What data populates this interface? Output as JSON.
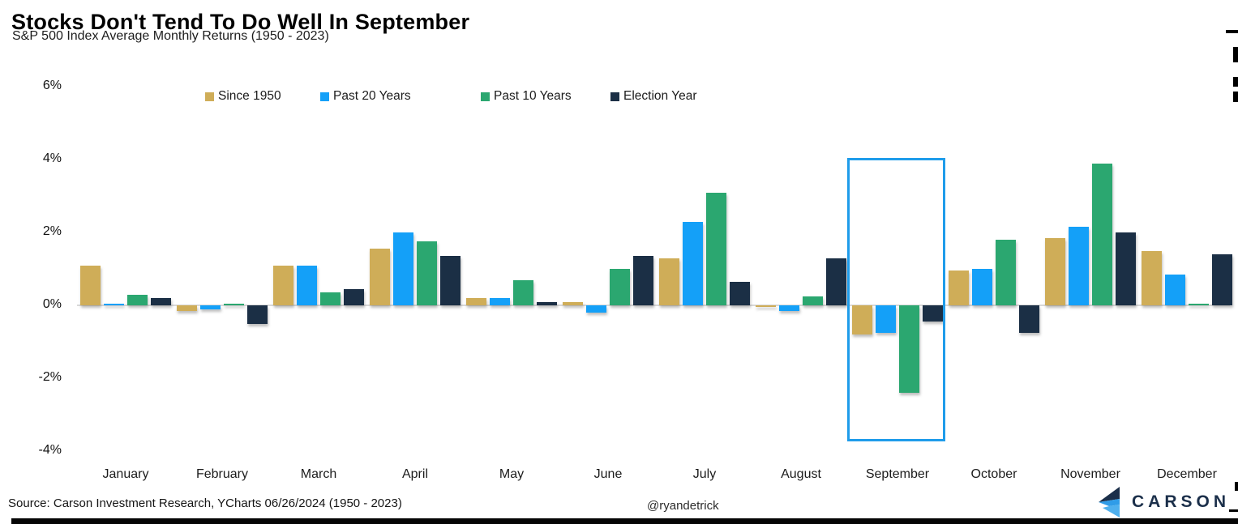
{
  "header": {
    "title": "Stocks Don't Tend To Do Well In September",
    "subtitle": "S&P 500 Index Average Monthly Returns (1950 - 2023)"
  },
  "footer": {
    "source": "Source: Carson Investment Research, YCharts 06/26/2024 (1950 - 2023)",
    "handle": "@ryandetrick",
    "brand": "CARSON"
  },
  "colors": {
    "since_1950": "#cfad58",
    "past_20_years": "#14a0f8",
    "past_10_years": "#2ba770",
    "election_year": "#1b2f45",
    "highlight_box": "#1f9cea",
    "axis_line": "#d9d9d9",
    "brand_navy": "#1b2f4a",
    "brand_blue": "#2f9ce8"
  },
  "chart_data": {
    "type": "bar",
    "title": "S&P 500 Index Average Monthly Returns (1950 - 2023)",
    "xlabel": "",
    "ylabel": "",
    "ylim": [
      -4,
      6
    ],
    "yticks": [
      6,
      4,
      2,
      0,
      -2,
      -4
    ],
    "ytick_labels": [
      "6%",
      "4%",
      "2%",
      "0%",
      "-2%",
      "-4%"
    ],
    "grid": false,
    "legend_position": "top",
    "categories": [
      "January",
      "February",
      "March",
      "April",
      "May",
      "June",
      "July",
      "August",
      "September",
      "October",
      "November",
      "December"
    ],
    "series": [
      {
        "name": "Since 1950",
        "color": "#cfad58",
        "values": [
          1.1,
          -0.15,
          1.1,
          1.55,
          0.2,
          0.1,
          1.3,
          -0.05,
          -0.8,
          0.95,
          1.85,
          1.5
        ]
      },
      {
        "name": "Past 20 Years",
        "color": "#14a0f8",
        "values": [
          0.0,
          -0.1,
          1.1,
          2.0,
          0.2,
          -0.2,
          2.3,
          -0.15,
          -0.75,
          1.0,
          2.15,
          0.85
        ]
      },
      {
        "name": "Past 10 Years",
        "color": "#2ba770",
        "values": [
          0.3,
          0.05,
          0.35,
          1.75,
          0.7,
          1.0,
          3.1,
          0.25,
          -2.4,
          1.8,
          3.9,
          0.05
        ]
      },
      {
        "name": "Election Year",
        "color": "#1b2f45",
        "values": [
          0.2,
          -0.5,
          0.45,
          1.35,
          0.1,
          1.35,
          0.65,
          1.3,
          -0.45,
          -0.75,
          2.0,
          1.4
        ]
      }
    ],
    "annotations": [
      {
        "type": "highlight-box",
        "target": "September",
        "note": "September bars outlined in blue"
      }
    ]
  }
}
